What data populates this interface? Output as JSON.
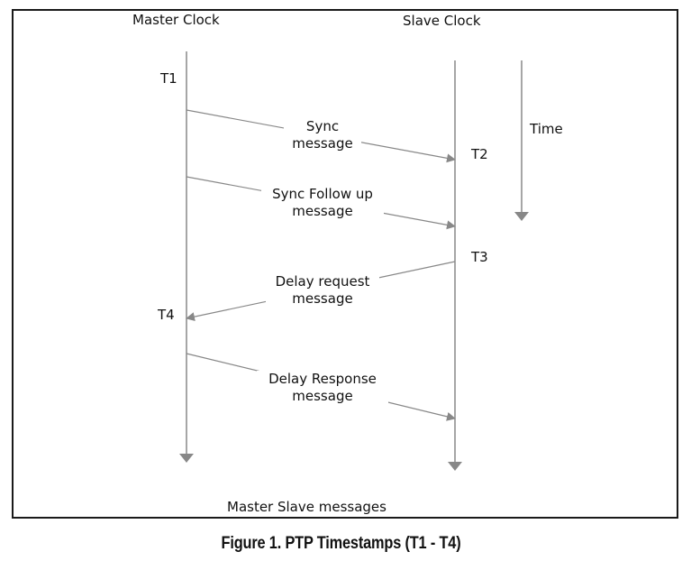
{
  "headers": {
    "master": "Master Clock",
    "slave": "Slave Clock"
  },
  "time_label": "Time",
  "timestamps": {
    "t1": "T1",
    "t2": "T2",
    "t3": "T3",
    "t4": "T4"
  },
  "messages": [
    {
      "line1": "Sync",
      "line2": "message"
    },
    {
      "line1": "Sync Follow up",
      "line2": "message"
    },
    {
      "line1": "Delay request",
      "line2": "message"
    },
    {
      "line1": "Delay Response",
      "line2": "message"
    }
  ],
  "footer": "Master Slave messages",
  "caption": "Figure 1. PTP Timestamps (T1 - T4)",
  "colors": {
    "line": "#888888",
    "frame": "#1a1a1a",
    "text": "#111111"
  }
}
